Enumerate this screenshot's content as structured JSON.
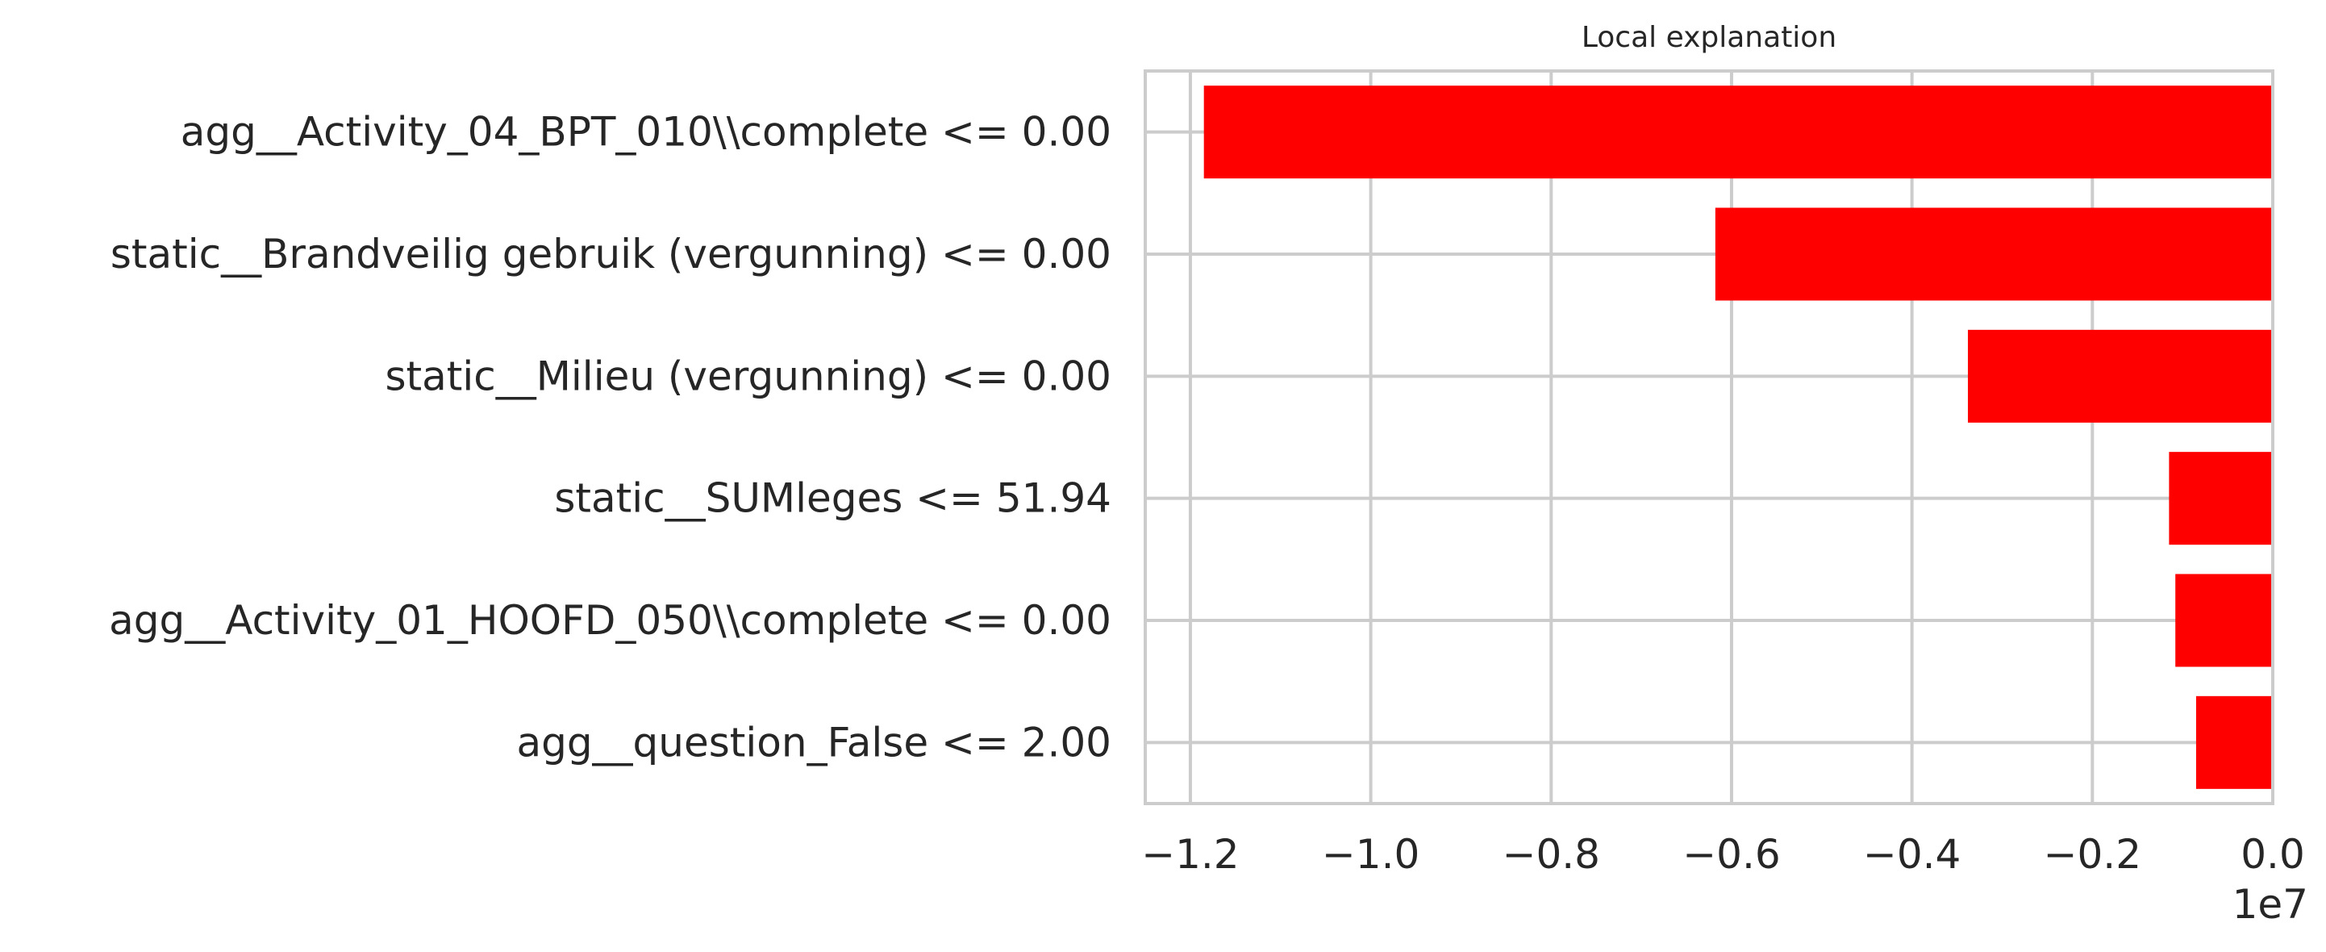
{
  "chart_data": {
    "type": "bar",
    "orientation": "horizontal",
    "title": "Local explanation",
    "xlabel": "",
    "ylabel": "",
    "x_offset_label": "1e7",
    "xlim": [
      -12500000,
      0
    ],
    "x_ticks": [
      -12000000,
      -10000000,
      -8000000,
      -6000000,
      -4000000,
      -2000000,
      0
    ],
    "x_tick_labels": [
      "−1.2",
      "−1.0",
      "−0.8",
      "−0.6",
      "−0.4",
      "−0.2",
      "0.0"
    ],
    "categories": [
      "agg__Activity_04_BPT_010\\\\complete <= 0.00",
      "static__Brandveilig gebruik (vergunning) <= 0.00",
      "static__Milieu (vergunning) <= 0.00",
      "static__SUMleges <= 51.94",
      "agg__Activity_01_HOOFD_050\\\\complete <= 0.00",
      "agg__question_False <= 2.00"
    ],
    "values": [
      -11850000,
      -6180000,
      -3380000,
      -1150000,
      -1080000,
      -850000
    ],
    "bar_color": "#ff0000",
    "grid": true,
    "legend": "none"
  }
}
